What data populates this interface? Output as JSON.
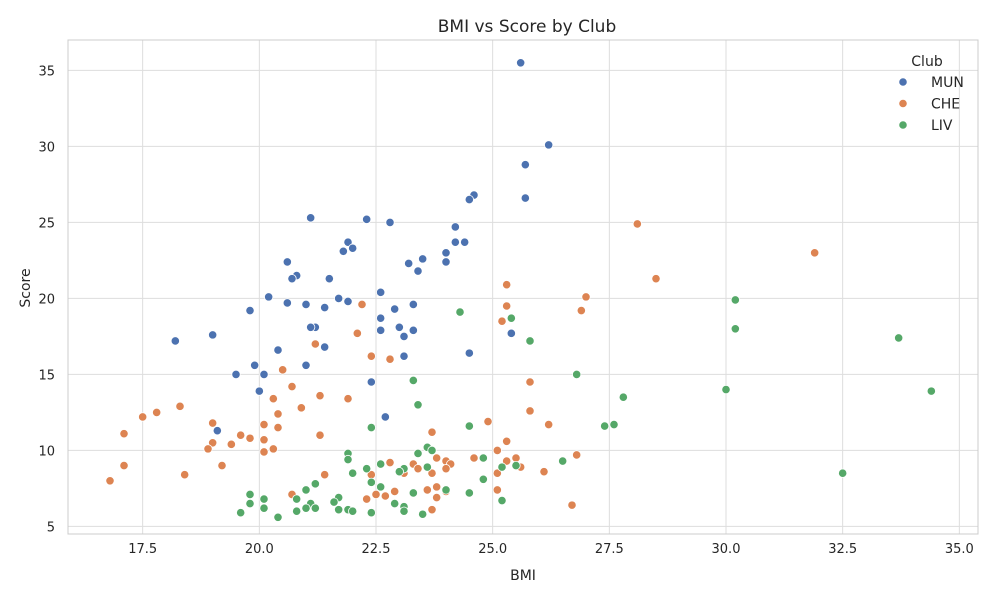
{
  "chart_data": {
    "type": "scatter",
    "title": "BMI vs Score by Club",
    "xlabel": "BMI",
    "ylabel": "Score",
    "xlim": [
      15.9,
      35.4
    ],
    "ylim": [
      4.5,
      37.0
    ],
    "xticks": [
      17.5,
      20.0,
      22.5,
      25.0,
      27.5,
      30.0,
      32.5,
      35.0
    ],
    "xtick_labels": [
      "17.5",
      "20.0",
      "22.5",
      "25.0",
      "27.5",
      "30.0",
      "32.5",
      "35.0"
    ],
    "yticks": [
      5,
      10,
      15,
      20,
      25,
      30,
      35
    ],
    "ytick_labels": [
      "5",
      "10",
      "15",
      "20",
      "25",
      "30",
      "35"
    ],
    "grid": true,
    "legend": {
      "title": "Club",
      "position": "top-right"
    },
    "series": [
      {
        "name": "MUN",
        "color": "#4C72B0",
        "points": [
          [
            25.6,
            35.5
          ],
          [
            26.2,
            30.1
          ],
          [
            25.7,
            28.8
          ],
          [
            25.7,
            26.6
          ],
          [
            24.6,
            26.8
          ],
          [
            24.5,
            26.5
          ],
          [
            21.1,
            25.3
          ],
          [
            22.3,
            25.2
          ],
          [
            22.8,
            25.0
          ],
          [
            24.2,
            24.7
          ],
          [
            24.2,
            23.7
          ],
          [
            24.4,
            23.7
          ],
          [
            21.9,
            23.7
          ],
          [
            21.8,
            23.1
          ],
          [
            22.0,
            23.3
          ],
          [
            24.0,
            23.0
          ],
          [
            23.5,
            22.6
          ],
          [
            20.6,
            22.4
          ],
          [
            23.2,
            22.3
          ],
          [
            24.0,
            22.4
          ],
          [
            23.4,
            21.8
          ],
          [
            20.8,
            21.5
          ],
          [
            20.7,
            21.3
          ],
          [
            21.5,
            21.3
          ],
          [
            22.6,
            20.4
          ],
          [
            20.2,
            20.1
          ],
          [
            20.6,
            19.7
          ],
          [
            21.7,
            20.0
          ],
          [
            21.9,
            19.8
          ],
          [
            21.0,
            19.6
          ],
          [
            21.4,
            19.4
          ],
          [
            22.9,
            19.3
          ],
          [
            23.3,
            19.6
          ],
          [
            19.8,
            19.2
          ],
          [
            22.6,
            18.7
          ],
          [
            21.2,
            18.1
          ],
          [
            21.1,
            18.1
          ],
          [
            23.0,
            18.1
          ],
          [
            22.6,
            17.9
          ],
          [
            23.3,
            17.9
          ],
          [
            25.4,
            17.7
          ],
          [
            19.0,
            17.6
          ],
          [
            23.1,
            17.5
          ],
          [
            18.2,
            17.2
          ],
          [
            21.4,
            16.8
          ],
          [
            20.4,
            16.6
          ],
          [
            23.1,
            16.2
          ],
          [
            24.5,
            16.4
          ],
          [
            21.0,
            15.6
          ],
          [
            19.9,
            15.6
          ],
          [
            20.1,
            15.0
          ],
          [
            19.5,
            15.0
          ],
          [
            22.4,
            14.5
          ],
          [
            20.0,
            13.9
          ],
          [
            22.7,
            12.2
          ],
          [
            19.1,
            11.3
          ]
        ]
      },
      {
        "name": "CHE",
        "color": "#DD8452",
        "points": [
          [
            28.1,
            24.9
          ],
          [
            31.9,
            23.0
          ],
          [
            28.5,
            21.3
          ],
          [
            25.3,
            20.9
          ],
          [
            27.0,
            20.1
          ],
          [
            22.2,
            19.6
          ],
          [
            25.3,
            19.5
          ],
          [
            26.9,
            19.2
          ],
          [
            25.2,
            18.5
          ],
          [
            22.1,
            17.7
          ],
          [
            21.2,
            17.0
          ],
          [
            22.4,
            16.2
          ],
          [
            22.8,
            16.0
          ],
          [
            20.5,
            15.3
          ],
          [
            25.8,
            14.5
          ],
          [
            20.7,
            14.2
          ],
          [
            21.3,
            13.6
          ],
          [
            20.3,
            13.4
          ],
          [
            21.9,
            13.4
          ],
          [
            18.3,
            12.9
          ],
          [
            20.9,
            12.8
          ],
          [
            17.8,
            12.5
          ],
          [
            25.8,
            12.6
          ],
          [
            20.4,
            12.4
          ],
          [
            17.5,
            12.2
          ],
          [
            24.9,
            11.9
          ],
          [
            19.0,
            11.8
          ],
          [
            20.1,
            11.7
          ],
          [
            26.2,
            11.7
          ],
          [
            20.4,
            11.5
          ],
          [
            21.3,
            11.0
          ],
          [
            23.7,
            11.2
          ],
          [
            17.1,
            11.1
          ],
          [
            19.6,
            11.0
          ],
          [
            19.8,
            10.8
          ],
          [
            20.1,
            10.7
          ],
          [
            25.3,
            10.6
          ],
          [
            19.0,
            10.5
          ],
          [
            19.4,
            10.4
          ],
          [
            20.3,
            10.1
          ],
          [
            25.1,
            10.0
          ],
          [
            18.9,
            10.1
          ],
          [
            20.1,
            9.9
          ],
          [
            26.8,
            9.7
          ],
          [
            24.6,
            9.5
          ],
          [
            23.8,
            9.5
          ],
          [
            25.5,
            9.5
          ],
          [
            24.0,
            9.3
          ],
          [
            25.3,
            9.3
          ],
          [
            22.8,
            9.2
          ],
          [
            23.3,
            9.1
          ],
          [
            24.1,
            9.1
          ],
          [
            17.1,
            9.0
          ],
          [
            19.2,
            9.0
          ],
          [
            25.6,
            8.9
          ],
          [
            24.0,
            8.8
          ],
          [
            23.4,
            8.8
          ],
          [
            26.1,
            8.6
          ],
          [
            25.1,
            8.5
          ],
          [
            23.7,
            8.5
          ],
          [
            22.4,
            8.4
          ],
          [
            21.4,
            8.4
          ],
          [
            18.4,
            8.4
          ],
          [
            23.1,
            8.5
          ],
          [
            16.8,
            8.0
          ],
          [
            23.8,
            7.6
          ],
          [
            25.1,
            7.4
          ],
          [
            24.0,
            7.3
          ],
          [
            22.9,
            7.3
          ],
          [
            23.6,
            7.4
          ],
          [
            22.5,
            7.1
          ],
          [
            20.7,
            7.1
          ],
          [
            22.7,
            7.0
          ],
          [
            23.8,
            6.9
          ],
          [
            22.3,
            6.8
          ],
          [
            26.7,
            6.4
          ],
          [
            23.7,
            6.1
          ]
        ]
      },
      {
        "name": "LIV",
        "color": "#55A868",
        "points": [
          [
            30.2,
            19.9
          ],
          [
            24.3,
            19.1
          ],
          [
            30.2,
            18.0
          ],
          [
            25.4,
            18.7
          ],
          [
            33.7,
            17.4
          ],
          [
            25.8,
            17.2
          ],
          [
            26.8,
            15.0
          ],
          [
            23.3,
            14.6
          ],
          [
            34.4,
            13.9
          ],
          [
            30.0,
            14.0
          ],
          [
            27.8,
            13.5
          ],
          [
            23.4,
            13.0
          ],
          [
            27.4,
            11.6
          ],
          [
            27.6,
            11.7
          ],
          [
            24.5,
            11.6
          ],
          [
            22.4,
            11.5
          ],
          [
            23.6,
            10.2
          ],
          [
            23.7,
            10.0
          ],
          [
            23.4,
            9.8
          ],
          [
            21.9,
            9.8
          ],
          [
            21.9,
            9.4
          ],
          [
            24.8,
            9.5
          ],
          [
            26.5,
            9.3
          ],
          [
            22.6,
            9.1
          ],
          [
            25.2,
            8.9
          ],
          [
            25.5,
            9.0
          ],
          [
            23.1,
            8.8
          ],
          [
            23.0,
            8.6
          ],
          [
            22.3,
            8.8
          ],
          [
            23.6,
            8.9
          ],
          [
            32.5,
            8.5
          ],
          [
            22.0,
            8.5
          ],
          [
            24.8,
            8.1
          ],
          [
            22.4,
            7.9
          ],
          [
            22.6,
            7.6
          ],
          [
            21.2,
            7.8
          ],
          [
            21.0,
            7.4
          ],
          [
            24.0,
            7.4
          ],
          [
            24.5,
            7.2
          ],
          [
            23.3,
            7.2
          ],
          [
            19.8,
            7.1
          ],
          [
            21.7,
            6.9
          ],
          [
            20.1,
            6.8
          ],
          [
            20.8,
            6.8
          ],
          [
            25.2,
            6.7
          ],
          [
            21.6,
            6.6
          ],
          [
            19.8,
            6.5
          ],
          [
            22.9,
            6.5
          ],
          [
            21.1,
            6.5
          ],
          [
            23.1,
            6.3
          ],
          [
            21.2,
            6.2
          ],
          [
            21.0,
            6.2
          ],
          [
            20.1,
            6.2
          ],
          [
            21.7,
            6.1
          ],
          [
            21.9,
            6.1
          ],
          [
            23.1,
            6.0
          ],
          [
            22.0,
            6.0
          ],
          [
            22.4,
            5.9
          ],
          [
            19.6,
            5.9
          ],
          [
            20.8,
            6.0
          ],
          [
            23.5,
            5.8
          ],
          [
            20.4,
            5.6
          ]
        ]
      }
    ]
  }
}
